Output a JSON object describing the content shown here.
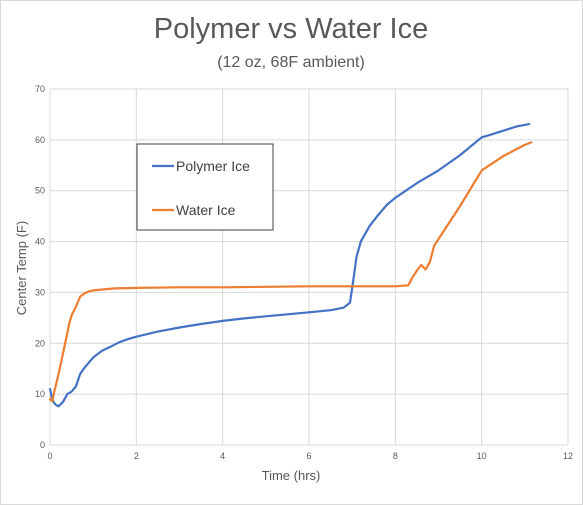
{
  "chart_data": {
    "type": "line",
    "title": "Polymer vs Water Ice",
    "subtitle": "(12 oz, 68F ambient)",
    "xlabel": "Time (hrs)",
    "ylabel": "Center Temp (F)",
    "xlim": [
      0,
      12
    ],
    "ylim": [
      0,
      70
    ],
    "xticks": [
      0,
      2,
      4,
      6,
      8,
      10,
      12
    ],
    "yticks": [
      0,
      10,
      20,
      30,
      40,
      50,
      60,
      70
    ],
    "grid": true,
    "legend": "upper-left inside plot, boxed",
    "series": [
      {
        "name": "Polymer Ice",
        "color": "#4472c4",
        "points": [
          [
            0,
            11
          ],
          [
            0.05,
            9
          ],
          [
            0.1,
            8.2
          ],
          [
            0.15,
            7.8
          ],
          [
            0.2,
            7.6
          ],
          [
            0.3,
            8.5
          ],
          [
            0.4,
            10
          ],
          [
            0.5,
            10.5
          ],
          [
            0.6,
            11.5
          ],
          [
            0.7,
            14
          ],
          [
            0.8,
            15.2
          ],
          [
            1,
            17.2
          ],
          [
            1.2,
            18.5
          ],
          [
            1.4,
            19.3
          ],
          [
            1.6,
            20.2
          ],
          [
            1.8,
            20.8
          ],
          [
            2,
            21.3
          ],
          [
            2.5,
            22.3
          ],
          [
            3,
            23.1
          ],
          [
            3.5,
            23.8
          ],
          [
            4,
            24.4
          ],
          [
            4.5,
            24.9
          ],
          [
            5,
            25.3
          ],
          [
            5.5,
            25.7
          ],
          [
            6,
            26.1
          ],
          [
            6.5,
            26.5
          ],
          [
            6.8,
            27
          ],
          [
            6.95,
            28
          ],
          [
            7.02,
            32
          ],
          [
            7.1,
            37
          ],
          [
            7.2,
            40
          ],
          [
            7.4,
            43
          ],
          [
            7.6,
            45.2
          ],
          [
            7.8,
            47.2
          ],
          [
            8,
            48.6
          ],
          [
            8.5,
            51.5
          ],
          [
            9,
            54
          ],
          [
            9.5,
            57
          ],
          [
            10,
            60.5
          ],
          [
            10.2,
            61
          ],
          [
            10.5,
            61.8
          ],
          [
            10.8,
            62.6
          ],
          [
            11.1,
            63.1
          ]
        ]
      },
      {
        "name": "Water Ice",
        "color": "#ed7d31",
        "points": [
          [
            0,
            9
          ],
          [
            0.05,
            8.6
          ],
          [
            0.1,
            10.5
          ],
          [
            0.2,
            14
          ],
          [
            0.3,
            18
          ],
          [
            0.4,
            22
          ],
          [
            0.45,
            24
          ],
          [
            0.5,
            25.5
          ],
          [
            0.6,
            27.2
          ],
          [
            0.7,
            29.2
          ],
          [
            0.8,
            29.8
          ],
          [
            0.9,
            30.2
          ],
          [
            1,
            30.4
          ],
          [
            1.5,
            30.8
          ],
          [
            2,
            30.9
          ],
          [
            3,
            31
          ],
          [
            4,
            31
          ],
          [
            5,
            31.1
          ],
          [
            6,
            31.2
          ],
          [
            7,
            31.2
          ],
          [
            8,
            31.2
          ],
          [
            8.3,
            31.4
          ],
          [
            8.4,
            33
          ],
          [
            8.5,
            34.3
          ],
          [
            8.6,
            35.4
          ],
          [
            8.7,
            34.5
          ],
          [
            8.8,
            36
          ],
          [
            8.9,
            39.2
          ],
          [
            9,
            40.5
          ],
          [
            9.5,
            47
          ],
          [
            10,
            54
          ],
          [
            10.5,
            56.8
          ],
          [
            11,
            59
          ],
          [
            11.15,
            59.5
          ]
        ]
      }
    ]
  }
}
